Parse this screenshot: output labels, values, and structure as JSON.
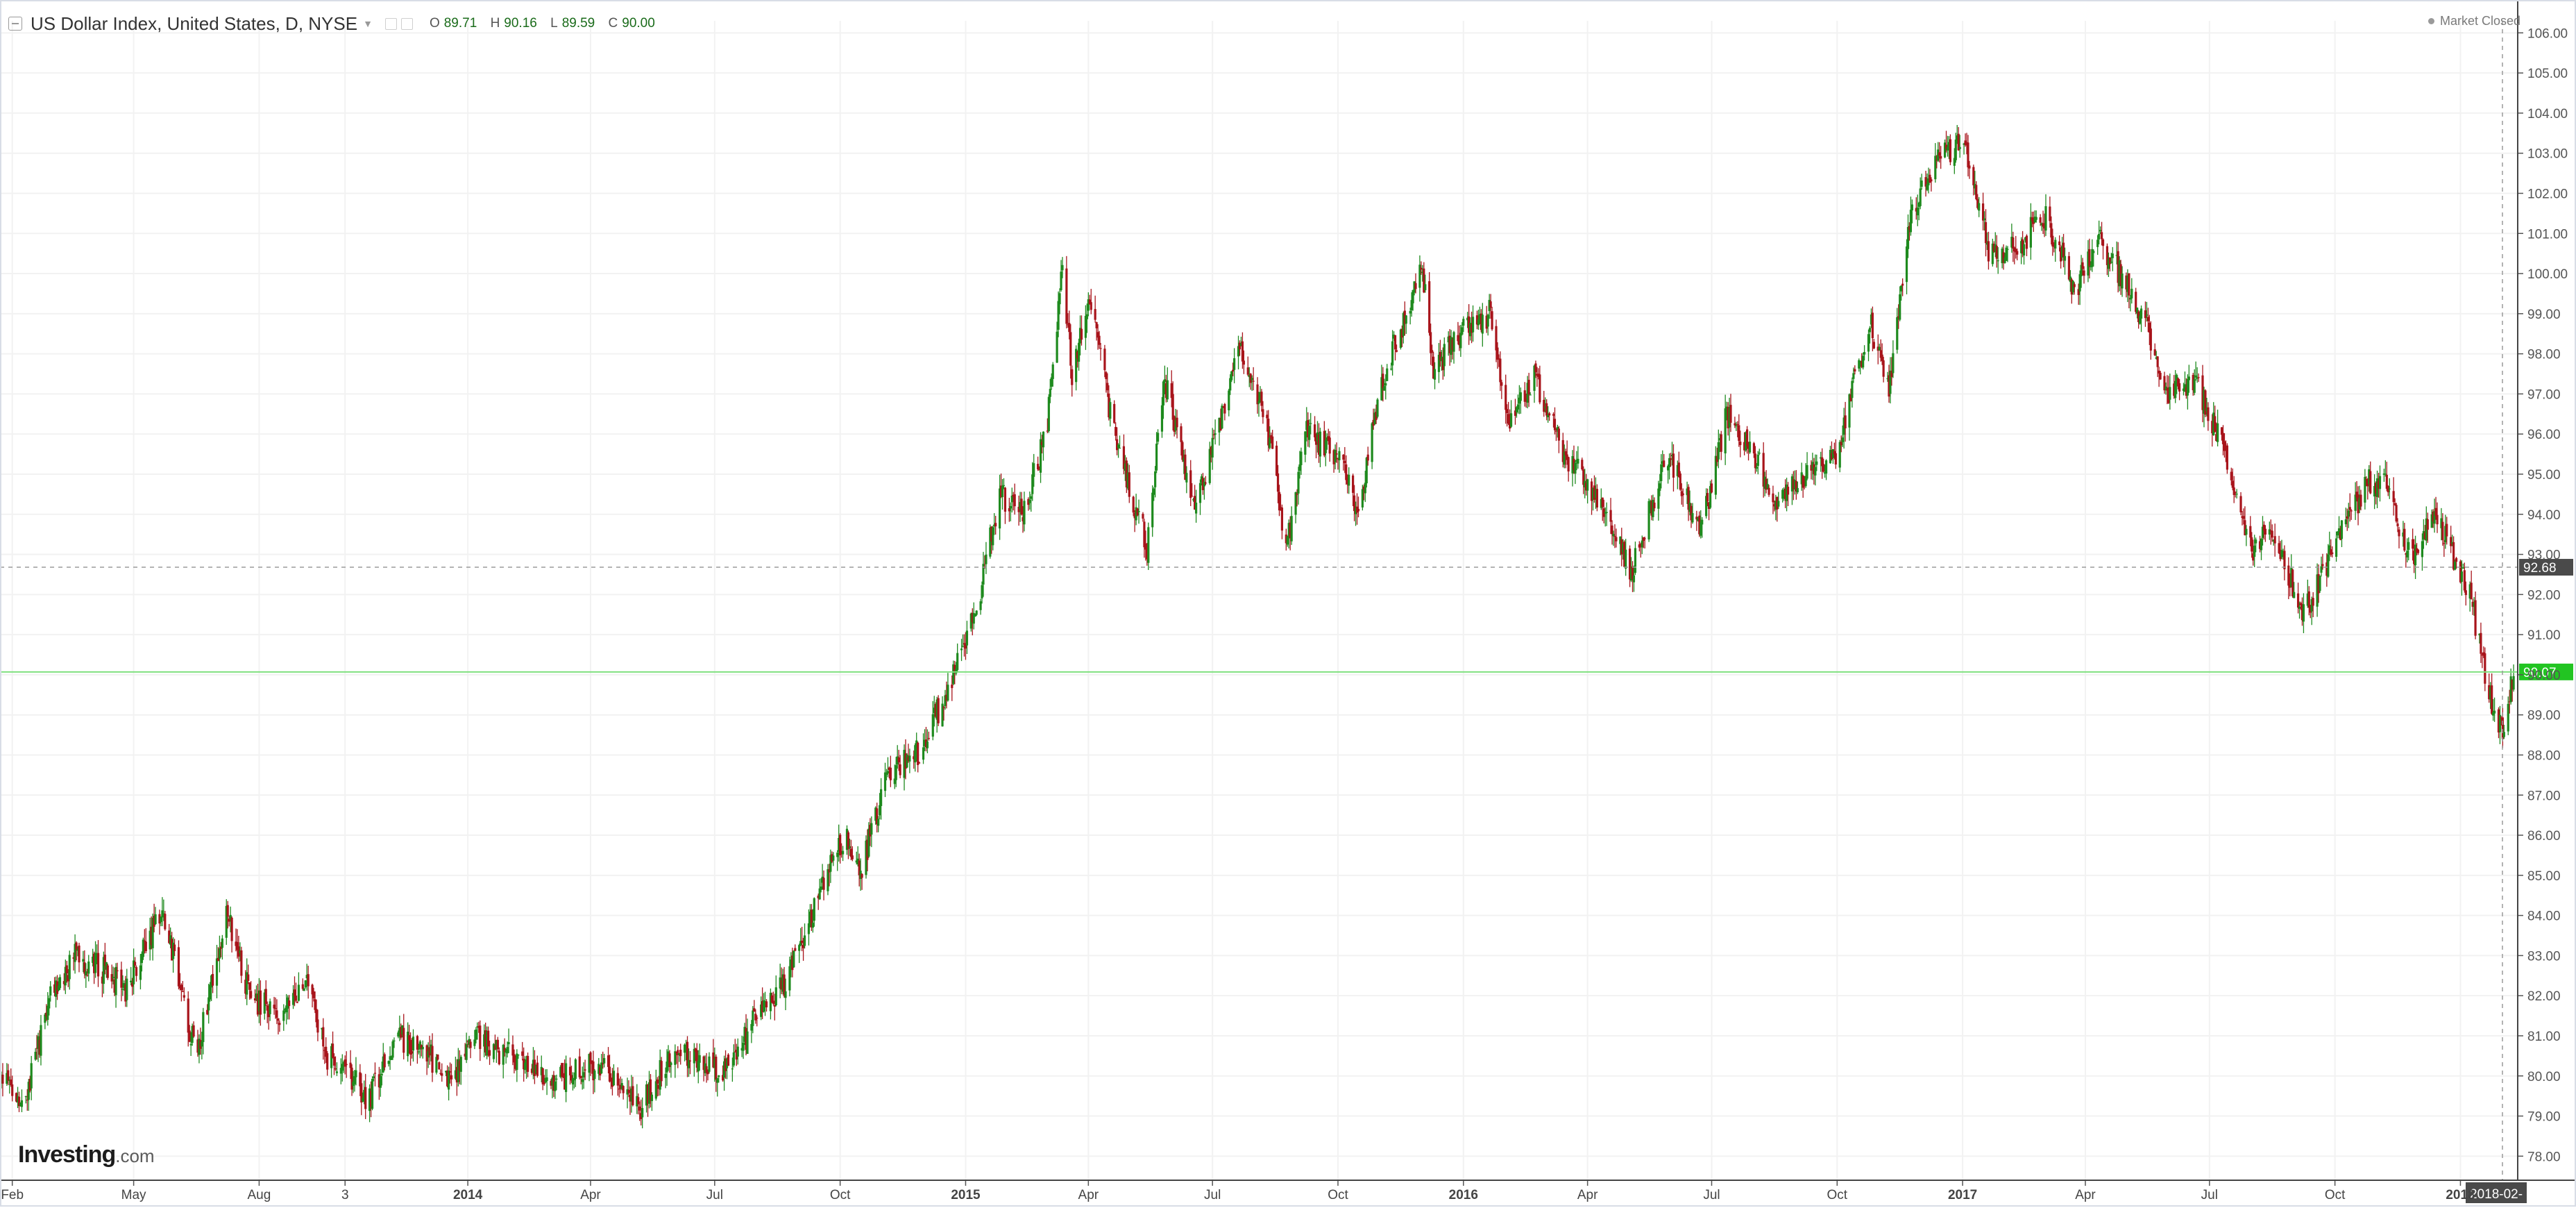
{
  "header": {
    "symbol": "US Dollar Index, United States, D, NYSE",
    "ohlc": [
      {
        "key": "O",
        "value": "89.71"
      },
      {
        "key": "H",
        "value": "90.16"
      },
      {
        "key": "L",
        "value": "89.59"
      },
      {
        "key": "C",
        "value": "90.00"
      }
    ]
  },
  "market_status": "Market Closed",
  "logo": {
    "main": "Investing",
    "suffix": ".com"
  },
  "colors": {
    "up": "#1e8a1e",
    "down": "#a8141b",
    "last_price": "#22c422",
    "ref_price": "#4a4a4a",
    "grid": "#f2f2f2"
  },
  "chart_data": {
    "type": "candlestick",
    "title": "US Dollar Index, United States, D, NYSE",
    "ylim": [
      77.4,
      106.3
    ],
    "y_ticks": [
      "78.00",
      "79.00",
      "80.00",
      "81.00",
      "82.00",
      "83.00",
      "84.00",
      "85.00",
      "86.00",
      "87.00",
      "88.00",
      "89.00",
      "90.00",
      "91.00",
      "92.00",
      "93.00",
      "94.00",
      "95.00",
      "96.00",
      "97.00",
      "98.00",
      "99.00",
      "100.00",
      "101.00",
      "102.00",
      "103.00",
      "104.00",
      "105.00",
      "106.00"
    ],
    "x_ticks": [
      {
        "label": "Feb",
        "date": "2013-02-01",
        "bold": false
      },
      {
        "label": "May",
        "date": "2013-05-01",
        "bold": false
      },
      {
        "label": "Aug",
        "date": "2013-08-01",
        "bold": false
      },
      {
        "label": "3",
        "date": "2013-10-03",
        "bold": false
      },
      {
        "label": "2014",
        "date": "2014-01-01",
        "bold": true
      },
      {
        "label": "Apr",
        "date": "2014-04-01",
        "bold": false
      },
      {
        "label": "Jul",
        "date": "2014-07-01",
        "bold": false
      },
      {
        "label": "Oct",
        "date": "2014-10-01",
        "bold": false
      },
      {
        "label": "2015",
        "date": "2015-01-01",
        "bold": true
      },
      {
        "label": "Apr",
        "date": "2015-04-01",
        "bold": false
      },
      {
        "label": "Jul",
        "date": "2015-07-01",
        "bold": false
      },
      {
        "label": "Oct",
        "date": "2015-10-01",
        "bold": false
      },
      {
        "label": "2016",
        "date": "2016-01-01",
        "bold": true
      },
      {
        "label": "Apr",
        "date": "2016-04-01",
        "bold": false
      },
      {
        "label": "Jul",
        "date": "2016-07-01",
        "bold": false
      },
      {
        "label": "Oct",
        "date": "2016-10-01",
        "bold": false
      },
      {
        "label": "2017",
        "date": "2017-01-01",
        "bold": true
      },
      {
        "label": "Apr",
        "date": "2017-04-01",
        "bold": false
      },
      {
        "label": "Jul",
        "date": "2017-07-01",
        "bold": false
      },
      {
        "label": "Oct",
        "date": "2017-10-01",
        "bold": false
      },
      {
        "label": "2018",
        "date": "2018-01-01",
        "bold": true
      }
    ],
    "x_range": [
      "2013-01-23",
      "2018-02-12"
    ],
    "cursor_date_label": "2018-02-",
    "last_price": {
      "label": "90.07",
      "value": 90.07
    },
    "ref_price": {
      "label": "92.68",
      "value": 92.68
    },
    "path_points": [
      [
        "2013-01-23",
        79.9
      ],
      [
        "2013-02-10",
        79.4
      ],
      [
        "2013-03-01",
        81.9
      ],
      [
        "2013-03-20",
        83.0
      ],
      [
        "2013-04-10",
        82.6
      ],
      [
        "2013-04-25",
        82.2
      ],
      [
        "2013-05-05",
        82.8
      ],
      [
        "2013-05-22",
        84.3
      ],
      [
        "2013-06-10",
        81.2
      ],
      [
        "2013-06-18",
        80.8
      ],
      [
        "2013-07-08",
        84.1
      ],
      [
        "2013-07-25",
        82.0
      ],
      [
        "2013-08-15",
        81.5
      ],
      [
        "2013-09-05",
        82.2
      ],
      [
        "2013-09-20",
        80.5
      ],
      [
        "2013-10-03",
        80.2
      ],
      [
        "2013-10-20",
        79.4
      ],
      [
        "2013-11-10",
        81.0
      ],
      [
        "2013-12-01",
        80.6
      ],
      [
        "2013-12-20",
        79.9
      ],
      [
        "2014-01-08",
        80.9
      ],
      [
        "2014-02-01",
        80.5
      ],
      [
        "2014-03-01",
        79.8
      ],
      [
        "2014-03-20",
        80.1
      ],
      [
        "2014-04-10",
        80.3
      ],
      [
        "2014-05-08",
        79.2
      ],
      [
        "2014-06-01",
        80.7
      ],
      [
        "2014-06-20",
        80.3
      ],
      [
        "2014-07-10",
        80.1
      ],
      [
        "2014-08-01",
        81.5
      ],
      [
        "2014-08-25",
        82.5
      ],
      [
        "2014-09-15",
        84.5
      ],
      [
        "2014-10-05",
        86.0
      ],
      [
        "2014-10-15",
        85.0
      ],
      [
        "2014-11-05",
        87.5
      ],
      [
        "2014-12-01",
        88.2
      ],
      [
        "2014-12-20",
        89.8
      ],
      [
        "2015-01-08",
        91.5
      ],
      [
        "2015-01-26",
        94.5
      ],
      [
        "2015-02-12",
        94.0
      ],
      [
        "2015-03-01",
        96.0
      ],
      [
        "2015-03-13",
        100.2
      ],
      [
        "2015-03-20",
        97.5
      ],
      [
        "2015-04-01",
        99.5
      ],
      [
        "2015-04-20",
        96.0
      ],
      [
        "2015-05-14",
        93.2
      ],
      [
        "2015-05-27",
        97.4
      ],
      [
        "2015-06-18",
        94.0
      ],
      [
        "2015-07-08",
        96.4
      ],
      [
        "2015-07-22",
        98.2
      ],
      [
        "2015-08-10",
        96.2
      ],
      [
        "2015-08-24",
        93.2
      ],
      [
        "2015-09-08",
        96.0
      ],
      [
        "2015-10-01",
        95.5
      ],
      [
        "2015-10-15",
        94.0
      ],
      [
        "2015-11-01",
        97.2
      ],
      [
        "2015-12-02",
        100.2
      ],
      [
        "2015-12-10",
        97.5
      ],
      [
        "2015-12-28",
        98.5
      ],
      [
        "2016-01-20",
        99.0
      ],
      [
        "2016-02-05",
        96.2
      ],
      [
        "2016-02-22",
        97.5
      ],
      [
        "2016-03-15",
        95.5
      ],
      [
        "2016-04-12",
        94.2
      ],
      [
        "2016-05-03",
        92.6
      ],
      [
        "2016-05-30",
        95.5
      ],
      [
        "2016-06-23",
        93.5
      ],
      [
        "2016-07-12",
        96.5
      ],
      [
        "2016-08-01",
        95.5
      ],
      [
        "2016-08-18",
        94.2
      ],
      [
        "2016-09-08",
        95.0
      ],
      [
        "2016-10-01",
        95.6
      ],
      [
        "2016-10-25",
        98.8
      ],
      [
        "2016-11-08",
        97.2
      ],
      [
        "2016-11-24",
        101.5
      ],
      [
        "2016-12-15",
        103.0
      ],
      [
        "2017-01-03",
        103.2
      ],
      [
        "2017-01-20",
        100.6
      ],
      [
        "2017-02-10",
        100.6
      ],
      [
        "2017-03-01",
        101.5
      ],
      [
        "2017-03-25",
        99.5
      ],
      [
        "2017-04-10",
        101.0
      ],
      [
        "2017-05-15",
        98.8
      ],
      [
        "2017-06-01",
        97.0
      ],
      [
        "2017-06-20",
        97.4
      ],
      [
        "2017-07-10",
        95.8
      ],
      [
        "2017-08-01",
        93.0
      ],
      [
        "2017-08-15",
        93.8
      ],
      [
        "2017-09-08",
        91.5
      ],
      [
        "2017-10-01",
        93.2
      ],
      [
        "2017-10-25",
        94.8
      ],
      [
        "2017-11-07",
        94.8
      ],
      [
        "2017-11-27",
        92.8
      ],
      [
        "2017-12-12",
        94.0
      ],
      [
        "2017-12-22",
        93.3
      ],
      [
        "2018-01-08",
        92.0
      ],
      [
        "2018-01-25",
        89.0
      ],
      [
        "2018-02-01",
        88.7
      ],
      [
        "2018-02-09",
        90.1
      ]
    ]
  }
}
